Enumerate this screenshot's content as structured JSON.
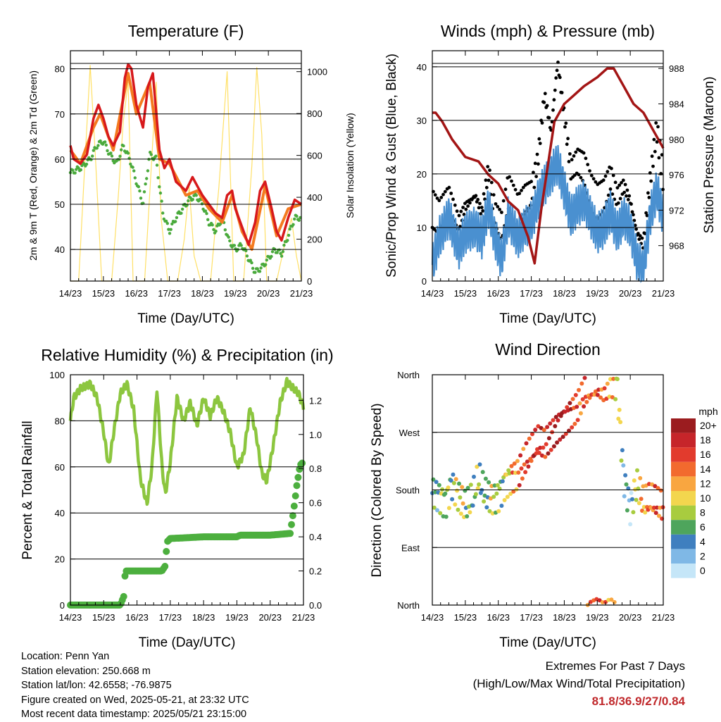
{
  "panels": {
    "temperature": {
      "title": "Temperature (F)",
      "ylabel_left": "2m & 9m T (Red, Orange) & 2m Td (Green)",
      "ylabel_right": "Solar Insolation (Yellow)",
      "xlabel": "Time (Day/UTC)"
    },
    "winds": {
      "title": "Winds (mph) & Pressure (mb)",
      "ylabel_left": "Sonic/Prop Wind & Gust (Blue, Black)",
      "ylabel_right": "Station Pressure (Maroon)",
      "xlabel": "Time (Day/UTC)"
    },
    "humidity": {
      "title": "Relative Humidity (%) & Precipitation (in)",
      "ylabel_left": "Percent & Total Rainfall",
      "xlabel": "Time (Day/UTC)"
    },
    "direction": {
      "title": "Wind Direction",
      "ylabel_left": "Direction (Colored By Speed)",
      "xlabel": "Time (Day/UTC)",
      "colorbar_title": "mph",
      "colorbar_labels": [
        "20+",
        "18",
        "16",
        "14",
        "12",
        "10",
        "8",
        "6",
        "4",
        "2",
        "0"
      ],
      "colorbar_colors": [
        "#9b1c1f",
        "#c6252a",
        "#e23b2d",
        "#f26a2e",
        "#f9a640",
        "#f3d64e",
        "#a8cc3f",
        "#4ea55c",
        "#3f7fbf",
        "#7fb8e6",
        "#c5e6f8"
      ]
    }
  },
  "info": {
    "location": "Location: Penn Yan",
    "elevation": "Station elevation: 250.668 m",
    "latlon": "Station lat/lon: 42.6558; -76.9875",
    "created": "Figure created on Wed, 2025-05-21, at 23:32 UTC",
    "recent": "Most recent data timestamp: 2025/05/21 23:15:00"
  },
  "extremes": {
    "title": "Extremes For Past 7 Days",
    "subtitle": "(High/Low/Max Wind/Total Precipitation)",
    "values": "81.8/36.9/27/0.84"
  },
  "colors": {
    "temp2m": "#d7191c",
    "temp9m": "#f47b20",
    "dewpoint": "#4aaa3c",
    "solar": "#ffe066",
    "wind": "#4a90d0",
    "gust": "#000000",
    "pressure": "#a31515",
    "rh": "#8cc63f",
    "precip": "#4caf3e"
  },
  "chart_data": [
    {
      "type": "line",
      "title": "Temperature (F)",
      "xlabel": "Time (Day/UTC)",
      "ylabel": "2m & 9m T (Red, Orange) & 2m Td (Green)",
      "y2label": "Solar Insolation (Yellow)",
      "x_ticks": [
        "14/23",
        "15/23",
        "16/23",
        "17/23",
        "18/23",
        "19/23",
        "20/23",
        "21/23"
      ],
      "xlim": [
        0,
        7
      ],
      "ylim": [
        33,
        84
      ],
      "yticks": [
        40,
        50,
        60,
        70,
        80
      ],
      "y2lim": [
        0,
        1100
      ],
      "y2ticks": [
        0,
        200,
        400,
        600,
        800,
        1000
      ],
      "series": [
        {
          "name": "2m T",
          "x": [
            0,
            0.1,
            0.3,
            0.5,
            0.7,
            0.85,
            1.0,
            1.15,
            1.3,
            1.5,
            1.65,
            1.75,
            1.85,
            2.0,
            2.2,
            2.35,
            2.5,
            2.7,
            2.85,
            3.0,
            3.2,
            3.5,
            3.7,
            3.85,
            4.0,
            4.2,
            4.4,
            4.6,
            4.75,
            4.9,
            5.0,
            5.2,
            5.4,
            5.6,
            5.75,
            5.9,
            6.1,
            6.25,
            6.4,
            6.6,
            6.8,
            7.0
          ],
          "values": [
            63,
            60,
            59,
            61,
            69,
            72,
            69,
            65,
            63,
            66,
            78,
            81,
            80,
            72,
            67,
            76,
            79,
            62,
            58,
            60,
            55,
            53,
            56,
            54,
            52,
            50,
            48,
            47,
            52,
            53,
            49,
            45,
            41,
            46,
            53,
            55,
            49,
            44,
            42,
            47,
            51,
            50
          ]
        },
        {
          "name": "9m T",
          "x": [
            0,
            0.3,
            0.7,
            0.9,
            1.3,
            1.75,
            2.0,
            2.4,
            2.7,
            3.0,
            3.5,
            3.85,
            4.2,
            4.6,
            4.9,
            5.2,
            5.5,
            5.9,
            6.25,
            6.6,
            7.0
          ],
          "values": [
            62,
            59,
            67,
            70,
            62,
            79,
            70,
            77,
            60,
            59,
            52,
            53,
            49,
            46,
            52,
            44,
            40,
            54,
            43,
            49,
            50
          ]
        },
        {
          "name": "2m Td",
          "x": [
            0,
            0.3,
            0.6,
            0.8,
            1.0,
            1.2,
            1.4,
            1.6,
            1.8,
            2.0,
            2.2,
            2.4,
            2.6,
            2.8,
            3.0,
            3.2,
            3.4,
            3.6,
            3.8,
            4.0,
            4.2,
            4.4,
            4.6,
            4.8,
            5.0,
            5.2,
            5.4,
            5.6,
            5.8,
            6.0,
            6.2,
            6.4,
            6.6,
            6.8,
            7.0
          ],
          "values": [
            57,
            58,
            60,
            63,
            64,
            61,
            59,
            63,
            60,
            55,
            50,
            61,
            60,
            48,
            44,
            47,
            49,
            51,
            52,
            50,
            46,
            44,
            47,
            42,
            40,
            41,
            38,
            35,
            36,
            38,
            40,
            39,
            43,
            47,
            47
          ]
        },
        {
          "name": "Solar Insolation",
          "axis": "right",
          "x": [
            0,
            0.25,
            0.45,
            0.6,
            0.75,
            0.95,
            1.25,
            1.45,
            1.6,
            1.75,
            1.9,
            2.25,
            2.45,
            2.6,
            2.75,
            2.95,
            3.25,
            3.45,
            3.6,
            3.75,
            3.95,
            4.25,
            4.5,
            4.75,
            4.95,
            5.25,
            5.5,
            5.65,
            5.8,
            5.95,
            6.25,
            6.5,
            6.7,
            6.85,
            7.0
          ],
          "values": [
            0,
            0,
            600,
            1030,
            620,
            0,
            0,
            400,
            760,
            950,
            0,
            0,
            540,
            950,
            300,
            0,
            0,
            200,
            450,
            120,
            0,
            0,
            450,
            1000,
            0,
            0,
            550,
            1020,
            700,
            0,
            0,
            180,
            300,
            120,
            0
          ]
        }
      ]
    },
    {
      "type": "line",
      "title": "Winds (mph) & Pressure (mb)",
      "xlabel": "Time (Day/UTC)",
      "ylabel": "Sonic/Prop Wind & Gust (Blue, Black)",
      "y2label": "Station Pressure (Maroon)",
      "x_ticks": [
        "14/23",
        "15/23",
        "16/23",
        "17/23",
        "18/23",
        "19/23",
        "20/23",
        "21/23"
      ],
      "xlim": [
        0,
        7
      ],
      "ylim": [
        0,
        43
      ],
      "yticks": [
        0,
        10,
        20,
        30,
        40
      ],
      "y2lim": [
        964,
        990
      ],
      "y2ticks": [
        968,
        972,
        976,
        980,
        984,
        988
      ],
      "series": [
        {
          "name": "Wind",
          "x": [
            0,
            0.2,
            0.5,
            0.8,
            1.0,
            1.3,
            1.5,
            1.7,
            1.9,
            2.1,
            2.3,
            2.6,
            2.8,
            3.0,
            3.2,
            3.4,
            3.6,
            3.8,
            4.0,
            4.2,
            4.4,
            4.6,
            4.8,
            5.0,
            5.2,
            5.4,
            5.6,
            5.8,
            6.0,
            6.2,
            6.4,
            6.6,
            6.8,
            7.0
          ],
          "values": [
            3,
            8,
            12,
            6,
            9,
            10,
            8,
            14,
            8,
            4,
            12,
            8,
            10,
            11,
            15,
            18,
            20,
            22,
            17,
            12,
            14,
            15,
            12,
            9,
            10,
            13,
            9,
            12,
            10,
            4,
            2,
            12,
            17,
            12
          ]
        },
        {
          "name": "Gust",
          "x": [
            0,
            0.2,
            0.5,
            0.8,
            1.0,
            1.3,
            1.5,
            1.7,
            1.9,
            2.1,
            2.3,
            2.6,
            2.8,
            3.0,
            3.2,
            3.4,
            3.6,
            3.8,
            4.0,
            4.2,
            4.4,
            4.6,
            4.8,
            5.0,
            5.2,
            5.4,
            5.6,
            5.8,
            6.0,
            6.2,
            6.4,
            6.6,
            6.8,
            7.0
          ],
          "values": [
            14,
            12,
            15,
            10,
            13,
            15,
            12,
            20,
            12,
            10,
            17,
            13,
            15,
            16,
            22,
            34,
            27,
            40,
            30,
            20,
            22,
            21,
            17,
            15,
            16,
            19,
            15,
            17,
            14,
            8,
            6,
            18,
            28,
            19
          ]
        },
        {
          "name": "Pressure",
          "axis": "right",
          "x": [
            0,
            0.1,
            0.3,
            0.6,
            1.0,
            1.4,
            1.7,
            2.0,
            2.3,
            2.6,
            2.9,
            3.1,
            3.3,
            3.5,
            3.7,
            4.0,
            4.3,
            4.6,
            5.0,
            5.3,
            5.5,
            5.8,
            6.1,
            6.4,
            6.7,
            7.0
          ],
          "values": [
            983,
            983,
            982,
            980,
            978,
            977.5,
            976,
            975,
            973,
            972,
            969,
            966,
            972,
            977,
            982,
            984,
            985,
            986,
            987,
            988,
            988,
            986,
            984,
            983,
            981,
            979
          ]
        }
      ]
    },
    {
      "type": "line",
      "title": "Relative Humidity (%) & Precipitation (in)",
      "xlabel": "Time (Day/UTC)",
      "ylabel": "Percent & Total Rainfall",
      "x_ticks": [
        "14/23",
        "15/23",
        "16/23",
        "17/23",
        "18/23",
        "19/23",
        "20/23",
        "21/23"
      ],
      "xlim": [
        0,
        7
      ],
      "ylim": [
        0,
        100
      ],
      "yticks": [
        0,
        20,
        40,
        60,
        80,
        100
      ],
      "y2lim": [
        0,
        1.35
      ],
      "y2ticks": [
        0.0,
        0.2,
        0.4,
        0.6,
        0.8,
        1.0,
        1.2
      ],
      "series": [
        {
          "name": "RH",
          "x": [
            0,
            0.1,
            0.3,
            0.6,
            0.8,
            1.0,
            1.15,
            1.3,
            1.5,
            1.7,
            1.9,
            2.1,
            2.3,
            2.45,
            2.6,
            2.75,
            2.85,
            3.0,
            3.2,
            3.4,
            3.6,
            3.8,
            4.0,
            4.2,
            4.4,
            4.6,
            4.8,
            5.0,
            5.2,
            5.4,
            5.6,
            5.75,
            5.9,
            6.1,
            6.3,
            6.5,
            6.7,
            6.85,
            7.0
          ],
          "values": [
            80,
            90,
            94,
            96,
            90,
            75,
            60,
            75,
            92,
            96,
            85,
            55,
            44,
            60,
            94,
            60,
            48,
            62,
            90,
            80,
            88,
            78,
            90,
            82,
            90,
            84,
            75,
            60,
            65,
            86,
            72,
            57,
            54,
            70,
            88,
            97,
            94,
            92,
            86
          ]
        },
        {
          "name": "Precipitation",
          "axis": "right",
          "x": [
            0,
            1.5,
            1.6,
            1.65,
            2.75,
            2.85,
            2.9,
            3.0,
            4.0,
            5.0,
            5.1,
            6.0,
            6.6,
            6.7,
            6.8,
            6.9,
            7.0
          ],
          "values": [
            0.0,
            0.0,
            0.05,
            0.2,
            0.2,
            0.23,
            0.37,
            0.39,
            0.4,
            0.4,
            0.41,
            0.41,
            0.42,
            0.55,
            0.7,
            0.82,
            0.84
          ]
        }
      ]
    },
    {
      "type": "scatter",
      "title": "Wind Direction",
      "xlabel": "Time (Day/UTC)",
      "ylabel": "Direction (Colored By Speed)",
      "x_ticks": [
        "14/23",
        "15/23",
        "16/23",
        "17/23",
        "18/23",
        "19/23",
        "20/23",
        "21/23"
      ],
      "y_ticks": [
        "North",
        "East",
        "South",
        "West",
        "North"
      ],
      "ylim": [
        0,
        360
      ],
      "series": [
        {
          "name": "Direction",
          "x": [
            0.05,
            0.2,
            0.4,
            0.6,
            0.8,
            1.0,
            1.2,
            1.4,
            1.6,
            1.8,
            2.0,
            2.2,
            2.4,
            2.6,
            2.8,
            3.0,
            3.2,
            3.4,
            3.6,
            3.8,
            4.0,
            4.2,
            4.4,
            4.6,
            4.8,
            5.0,
            5.2,
            5.4,
            5.6,
            5.8,
            6.0,
            6.2,
            6.4,
            6.6,
            6.8,
            6.95
          ],
          "values": [
            175,
            170,
            160,
            190,
            170,
            155,
            165,
            200,
            175,
            165,
            170,
            190,
            200,
            205,
            225,
            240,
            255,
            250,
            265,
            280,
            290,
            300,
            310,
            330,
            340,
            345,
            340,
            350,
            345,
            200,
            150,
            190,
            160,
            165,
            160,
            155
          ],
          "speed": [
            4,
            6,
            8,
            6,
            10,
            8,
            6,
            8,
            4,
            10,
            6,
            8,
            12,
            14,
            16,
            16,
            18,
            16,
            18,
            20,
            20,
            18,
            14,
            16,
            14,
            16,
            14,
            12,
            10,
            4,
            2,
            10,
            12,
            14,
            16,
            14
          ]
        }
      ]
    }
  ]
}
